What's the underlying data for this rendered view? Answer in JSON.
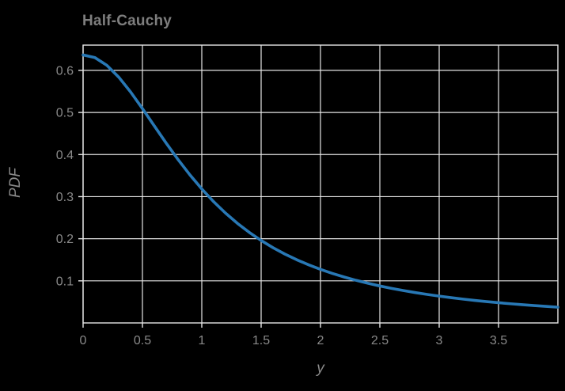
{
  "chart": {
    "title": "Half-Cauchy",
    "xlabel": "y",
    "ylabel": "PDF"
  },
  "chart_data": {
    "type": "line",
    "title": "Half-Cauchy",
    "xlabel": "y",
    "ylabel": "PDF",
    "xlim": [
      0,
      4
    ],
    "ylim": [
      0,
      0.66
    ],
    "grid": true,
    "legend": "none",
    "colors": {
      "background": "#000000",
      "grid": "#e6e6e6",
      "frame": "#e6e6e6",
      "text": "#8a8a8a",
      "line": "#2878b5"
    },
    "x_tick_values": [
      0,
      0.5,
      1,
      1.5,
      2,
      2.5,
      3,
      3.5
    ],
    "x_tick_labels": [
      "0",
      "0.5",
      "1",
      "1.5",
      "2",
      "2.5",
      "3",
      "3.5"
    ],
    "y_tick_values": [
      0.1,
      0.2,
      0.3,
      0.4,
      0.5,
      0.6
    ],
    "y_tick_labels": [
      "0.1",
      "0.2",
      "0.3",
      "0.4",
      "0.5",
      "0.6"
    ],
    "series": [
      {
        "name": "half-cauchy-pdf",
        "x": [
          0,
          0.1,
          0.2,
          0.3,
          0.4,
          0.5,
          0.6,
          0.7,
          0.8,
          0.9,
          1.0,
          1.1,
          1.2,
          1.3,
          1.4,
          1.5,
          1.6,
          1.7,
          1.8,
          1.9,
          2.0,
          2.1,
          2.2,
          2.3,
          2.4,
          2.5,
          2.6,
          2.7,
          2.8,
          2.9,
          3.0,
          3.1,
          3.2,
          3.3,
          3.4,
          3.5,
          3.6,
          3.7,
          3.8,
          3.9,
          4.0
        ],
        "y": [
          0.6366,
          0.6303,
          0.6121,
          0.584,
          0.5488,
          0.5093,
          0.4681,
          0.4272,
          0.3882,
          0.3517,
          0.3183,
          0.288,
          0.2609,
          0.2366,
          0.2151,
          0.1959,
          0.1788,
          0.1636,
          0.1501,
          0.1381,
          0.1273,
          0.1177,
          0.109,
          0.1012,
          0.0942,
          0.0878,
          0.082,
          0.0768,
          0.072,
          0.0677,
          0.0637,
          0.06,
          0.0566,
          0.0535,
          0.0507,
          0.048,
          0.0456,
          0.0433,
          0.0412,
          0.0393,
          0.0374
        ]
      }
    ]
  }
}
